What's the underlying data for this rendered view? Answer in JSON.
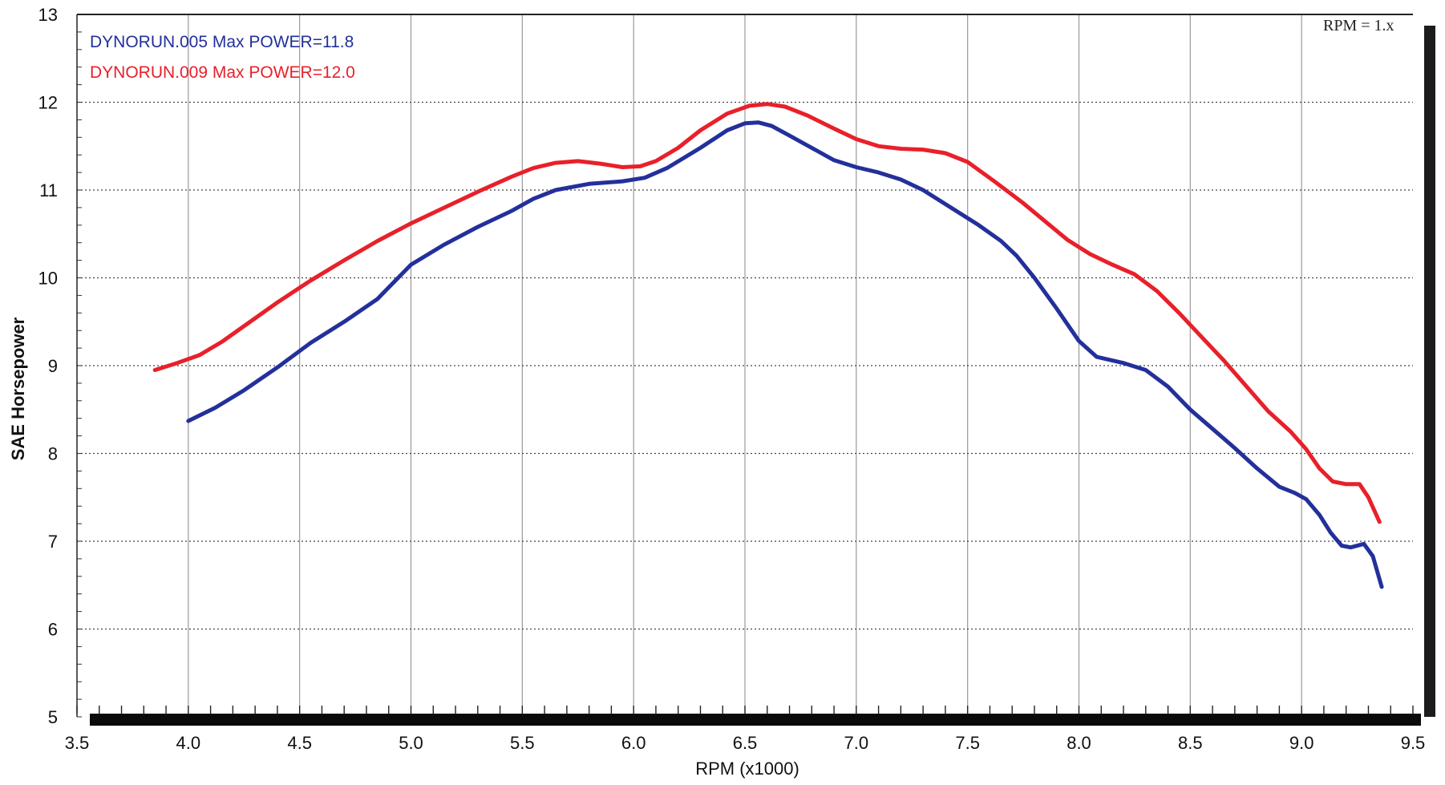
{
  "chart_data": {
    "type": "line",
    "xlabel": "RPM (x1000)",
    "ylabel": "SAE Horsepower",
    "xlim": [
      3.5,
      9.5
    ],
    "ylim": [
      5,
      13
    ],
    "x_ticks": [
      "3.5",
      "4.0",
      "4.5",
      "5.0",
      "5.5",
      "6.0",
      "6.5",
      "7.0",
      "7.5",
      "8.0",
      "8.5",
      "9.0",
      "9.5"
    ],
    "y_ticks": [
      "5",
      "6",
      "7",
      "8",
      "9",
      "10",
      "11",
      "12",
      "13"
    ],
    "grid": true,
    "legend_position": "top-left",
    "corner_text": "RPM = 1.x",
    "series": [
      {
        "name": "DYNORUN.005  Max POWER=11.8",
        "color": "#23309b",
        "points": [
          [
            4.0,
            8.37
          ],
          [
            4.12,
            8.52
          ],
          [
            4.25,
            8.72
          ],
          [
            4.4,
            8.98
          ],
          [
            4.55,
            9.26
          ],
          [
            4.7,
            9.5
          ],
          [
            4.85,
            9.76
          ],
          [
            5.0,
            10.15
          ],
          [
            5.15,
            10.38
          ],
          [
            5.3,
            10.58
          ],
          [
            5.45,
            10.76
          ],
          [
            5.55,
            10.9
          ],
          [
            5.65,
            11.0
          ],
          [
            5.8,
            11.07
          ],
          [
            5.95,
            11.1
          ],
          [
            6.05,
            11.14
          ],
          [
            6.15,
            11.25
          ],
          [
            6.3,
            11.48
          ],
          [
            6.42,
            11.68
          ],
          [
            6.5,
            11.76
          ],
          [
            6.56,
            11.77
          ],
          [
            6.62,
            11.73
          ],
          [
            6.7,
            11.62
          ],
          [
            6.8,
            11.48
          ],
          [
            6.9,
            11.34
          ],
          [
            7.0,
            11.26
          ],
          [
            7.1,
            11.2
          ],
          [
            7.2,
            11.12
          ],
          [
            7.3,
            11.0
          ],
          [
            7.4,
            10.84
          ],
          [
            7.55,
            10.6
          ],
          [
            7.65,
            10.42
          ],
          [
            7.72,
            10.25
          ],
          [
            7.8,
            10.0
          ],
          [
            7.9,
            9.65
          ],
          [
            8.0,
            9.28
          ],
          [
            8.08,
            9.1
          ],
          [
            8.2,
            9.03
          ],
          [
            8.3,
            8.95
          ],
          [
            8.4,
            8.76
          ],
          [
            8.5,
            8.5
          ],
          [
            8.6,
            8.28
          ],
          [
            8.7,
            8.06
          ],
          [
            8.8,
            7.83
          ],
          [
            8.9,
            7.62
          ],
          [
            8.97,
            7.55
          ],
          [
            9.02,
            7.48
          ],
          [
            9.08,
            7.3
          ],
          [
            9.13,
            7.1
          ],
          [
            9.18,
            6.95
          ],
          [
            9.22,
            6.93
          ],
          [
            9.28,
            6.97
          ],
          [
            9.32,
            6.83
          ],
          [
            9.36,
            6.48
          ]
        ]
      },
      {
        "name": "DYNORUN.009  Max POWER=12.0",
        "color": "#e8202a",
        "points": [
          [
            3.85,
            8.95
          ],
          [
            3.95,
            9.03
          ],
          [
            4.05,
            9.12
          ],
          [
            4.15,
            9.27
          ],
          [
            4.25,
            9.45
          ],
          [
            4.4,
            9.72
          ],
          [
            4.55,
            9.97
          ],
          [
            4.7,
            10.2
          ],
          [
            4.85,
            10.42
          ],
          [
            5.0,
            10.62
          ],
          [
            5.15,
            10.8
          ],
          [
            5.3,
            10.98
          ],
          [
            5.45,
            11.15
          ],
          [
            5.55,
            11.25
          ],
          [
            5.65,
            11.31
          ],
          [
            5.75,
            11.33
          ],
          [
            5.85,
            11.3
          ],
          [
            5.95,
            11.26
          ],
          [
            6.03,
            11.27
          ],
          [
            6.1,
            11.33
          ],
          [
            6.2,
            11.48
          ],
          [
            6.3,
            11.68
          ],
          [
            6.42,
            11.87
          ],
          [
            6.52,
            11.96
          ],
          [
            6.6,
            11.98
          ],
          [
            6.68,
            11.95
          ],
          [
            6.78,
            11.85
          ],
          [
            6.9,
            11.7
          ],
          [
            7.0,
            11.58
          ],
          [
            7.1,
            11.5
          ],
          [
            7.2,
            11.47
          ],
          [
            7.3,
            11.46
          ],
          [
            7.4,
            11.42
          ],
          [
            7.5,
            11.32
          ],
          [
            7.62,
            11.1
          ],
          [
            7.75,
            10.85
          ],
          [
            7.85,
            10.64
          ],
          [
            7.95,
            10.43
          ],
          [
            8.05,
            10.27
          ],
          [
            8.15,
            10.15
          ],
          [
            8.25,
            10.04
          ],
          [
            8.35,
            9.85
          ],
          [
            8.45,
            9.6
          ],
          [
            8.55,
            9.33
          ],
          [
            8.65,
            9.06
          ],
          [
            8.75,
            8.77
          ],
          [
            8.85,
            8.48
          ],
          [
            8.95,
            8.25
          ],
          [
            9.02,
            8.05
          ],
          [
            9.08,
            7.83
          ],
          [
            9.14,
            7.68
          ],
          [
            9.2,
            7.65
          ],
          [
            9.26,
            7.65
          ],
          [
            9.3,
            7.5
          ],
          [
            9.35,
            7.22
          ]
        ]
      }
    ]
  }
}
